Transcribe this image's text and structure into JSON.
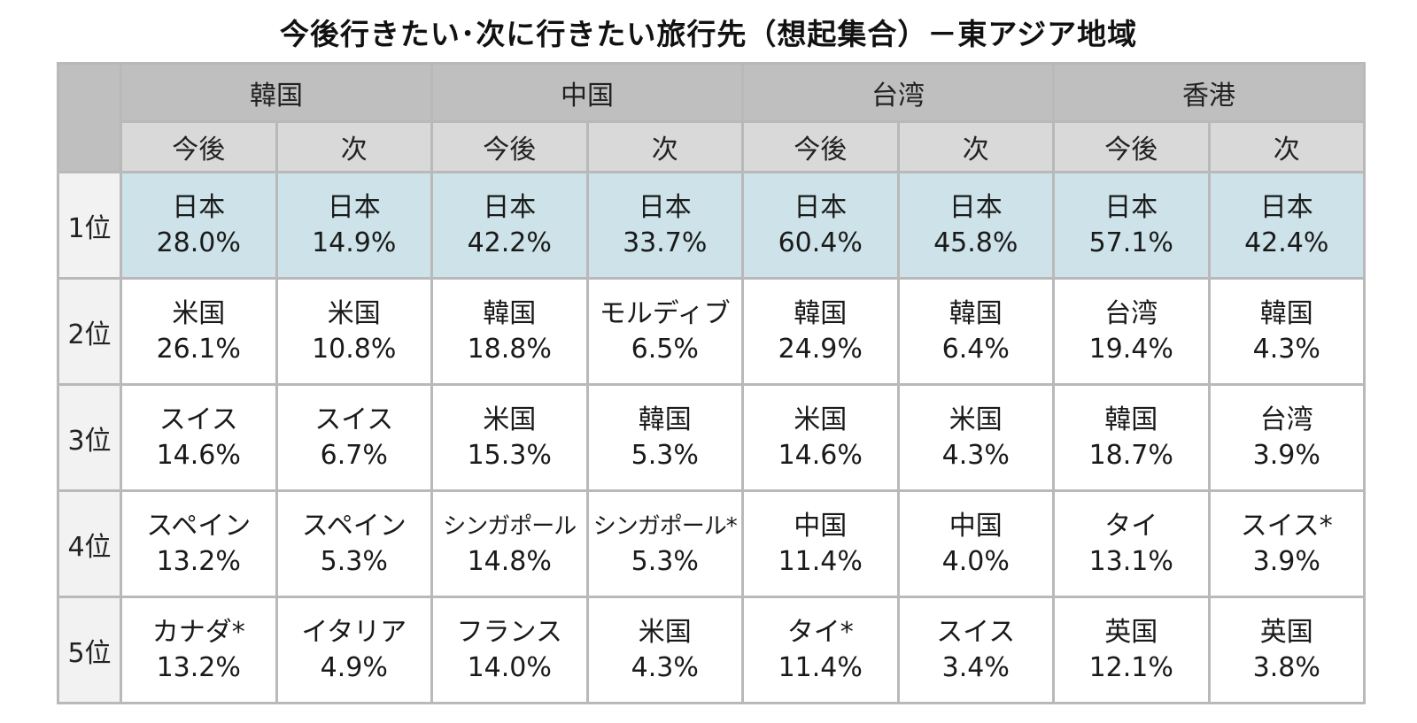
{
  "chart_data": {
    "type": "table",
    "title": "今後行きたい･次に行きたい旅行先（想起集合）－東アジア地域",
    "regions": [
      "韓国",
      "中国",
      "台湾",
      "香港"
    ],
    "subheaders": [
      "今後",
      "次",
      "今後",
      "次",
      "今後",
      "次",
      "今後",
      "次"
    ],
    "rows": [
      {
        "rank": "1位",
        "cells": [
          {
            "place": "日本",
            "pct": "28.0%",
            "value": 28.0
          },
          {
            "place": "日本",
            "pct": "14.9%",
            "value": 14.9
          },
          {
            "place": "日本",
            "pct": "42.2%",
            "value": 42.2
          },
          {
            "place": "日本",
            "pct": "33.7%",
            "value": 33.7
          },
          {
            "place": "日本",
            "pct": "60.4%",
            "value": 60.4
          },
          {
            "place": "日本",
            "pct": "45.8%",
            "value": 45.8
          },
          {
            "place": "日本",
            "pct": "57.1%",
            "value": 57.1
          },
          {
            "place": "日本",
            "pct": "42.4%",
            "value": 42.4
          }
        ]
      },
      {
        "rank": "2位",
        "cells": [
          {
            "place": "米国",
            "pct": "26.1%",
            "value": 26.1
          },
          {
            "place": "米国",
            "pct": "10.8%",
            "value": 10.8
          },
          {
            "place": "韓国",
            "pct": "18.8%",
            "value": 18.8
          },
          {
            "place": "モルディブ",
            "pct": "6.5%",
            "value": 6.5
          },
          {
            "place": "韓国",
            "pct": "24.9%",
            "value": 24.9
          },
          {
            "place": "韓国",
            "pct": "6.4%",
            "value": 6.4
          },
          {
            "place": "台湾",
            "pct": "19.4%",
            "value": 19.4
          },
          {
            "place": "韓国",
            "pct": "4.3%",
            "value": 4.3
          }
        ]
      },
      {
        "rank": "3位",
        "cells": [
          {
            "place": "スイス",
            "pct": "14.6%",
            "value": 14.6
          },
          {
            "place": "スイス",
            "pct": "6.7%",
            "value": 6.7
          },
          {
            "place": "米国",
            "pct": "15.3%",
            "value": 15.3
          },
          {
            "place": "韓国",
            "pct": "5.3%",
            "value": 5.3
          },
          {
            "place": "米国",
            "pct": "14.6%",
            "value": 14.6
          },
          {
            "place": "米国",
            "pct": "4.3%",
            "value": 4.3
          },
          {
            "place": "韓国",
            "pct": "18.7%",
            "value": 18.7
          },
          {
            "place": "台湾",
            "pct": "3.9%",
            "value": 3.9
          }
        ]
      },
      {
        "rank": "4位",
        "cells": [
          {
            "place": "スペイン",
            "pct": "13.2%",
            "value": 13.2
          },
          {
            "place": "スペイン",
            "pct": "5.3%",
            "value": 5.3
          },
          {
            "place": "シンガポール",
            "pct": "14.8%",
            "value": 14.8
          },
          {
            "place": "シンガポール*",
            "pct": "5.3%",
            "value": 5.3
          },
          {
            "place": "中国",
            "pct": "11.4%",
            "value": 11.4
          },
          {
            "place": "中国",
            "pct": "4.0%",
            "value": 4.0
          },
          {
            "place": "タイ",
            "pct": "13.1%",
            "value": 13.1
          },
          {
            "place": "スイス*",
            "pct": "3.9%",
            "value": 3.9
          }
        ]
      },
      {
        "rank": "5位",
        "cells": [
          {
            "place": "カナダ*",
            "pct": "13.2%",
            "value": 13.2
          },
          {
            "place": "イタリア",
            "pct": "4.9%",
            "value": 4.9
          },
          {
            "place": "フランス",
            "pct": "14.0%",
            "value": 14.0
          },
          {
            "place": "米国",
            "pct": "4.3%",
            "value": 4.3
          },
          {
            "place": "タイ*",
            "pct": "11.4%",
            "value": 11.4
          },
          {
            "place": "スイス",
            "pct": "3.4%",
            "value": 3.4
          },
          {
            "place": "英国",
            "pct": "12.1%",
            "value": 12.1
          },
          {
            "place": "英国",
            "pct": "3.8%",
            "value": 3.8
          }
        ]
      }
    ],
    "colors": {
      "header_region": "#bfbfbf",
      "header_sub": "#d9d9d9",
      "row_head": "#f2f2f2",
      "top_rank_fill": "#cde3e9",
      "border": "#b9b9b9"
    }
  }
}
